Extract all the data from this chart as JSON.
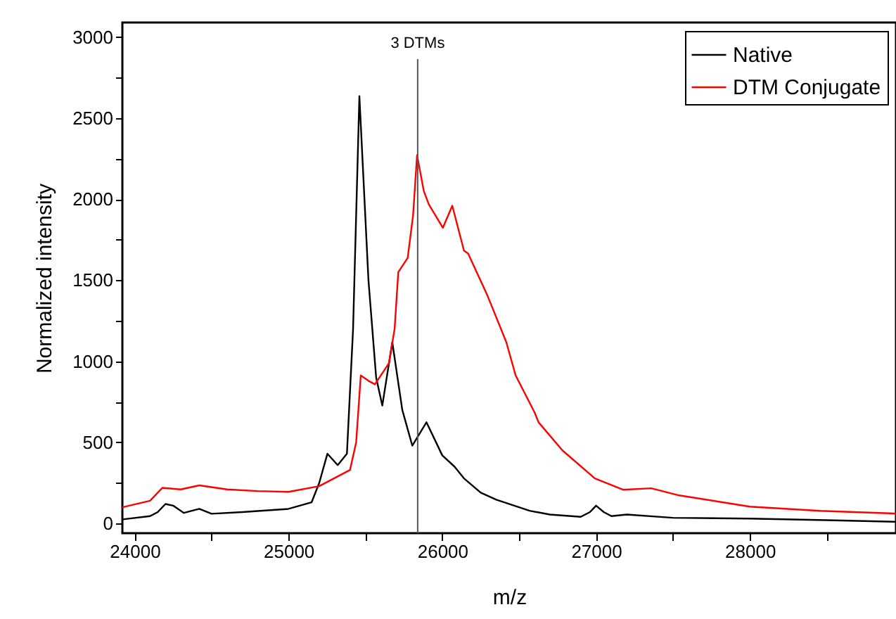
{
  "chart_data": {
    "type": "line",
    "xlabel": "m/z",
    "ylabel": "Normalized intensity",
    "xlim": [
      23920,
      28950
    ],
    "ylim": [
      -60,
      3090
    ],
    "xticks": [
      24000,
      {
        "value": 24500,
        "label": null
      },
      25000,
      {
        "value": 25500,
        "label": null
      },
      26000,
      {
        "value": 26500,
        "label": null
      },
      27000,
      {
        "value": 27500,
        "label": null
      },
      28000,
      {
        "value": 28500,
        "label": null
      }
    ],
    "yticks": [
      0,
      {
        "value": 250,
        "label": null
      },
      500,
      {
        "value": 750,
        "label": null
      },
      1000,
      {
        "value": 1250,
        "label": null
      },
      1500,
      {
        "value": 1750,
        "label": null
      },
      2000,
      {
        "value": 2250,
        "label": null
      },
      2500,
      {
        "value": 2750,
        "label": null
      },
      3000
    ],
    "grid": false,
    "legend": "top right",
    "marker": "none",
    "line_style": "solid",
    "ref_lines": [
      {
        "axis": "x",
        "value": 25840,
        "label": "3 DTMs",
        "color": "#555555"
      }
    ],
    "series": [
      {
        "name": "Native",
        "color": "#000000",
        "x": [
          23920,
          24100,
          24150,
          24200,
          24250,
          24320,
          24420,
          24500,
          24700,
          25000,
          25150,
          25200,
          25253,
          25320,
          25380,
          25420,
          25461,
          25520,
          25570,
          25610,
          25675,
          25740,
          25805,
          25897,
          26000,
          26080,
          26141,
          26250,
          26351,
          26568,
          26700,
          26900,
          26960,
          27000,
          27050,
          27100,
          27200,
          27500,
          28000,
          28500,
          28950
        ],
        "values": [
          25,
          45,
          70,
          120,
          110,
          65,
          90,
          60,
          70,
          90,
          130,
          250,
          430,
          360,
          430,
          1200,
          2636,
          1500,
          900,
          727,
          1118,
          700,
          480,
          624,
          420,
          350,
          278,
          190,
          147,
          78,
          55,
          41,
          70,
          110,
          70,
          45,
          55,
          35,
          30,
          20,
          10
        ]
      },
      {
        "name": "DTM Conjugate",
        "color": "#ff0000",
        "x": [
          23920,
          24100,
          24180,
          24300,
          24420,
          24600,
          24800,
          25000,
          25200,
          25300,
          25400,
          25440,
          25470,
          25520,
          25562,
          25653,
          25690,
          25714,
          25775,
          25810,
          25836,
          25880,
          25912,
          26004,
          26065,
          26141,
          26168,
          26294,
          26416,
          26477,
          26600,
          26626,
          26781,
          26992,
          27175,
          27358,
          27541,
          28000,
          28456,
          28950
        ],
        "values": [
          100,
          140,
          220,
          210,
          235,
          210,
          200,
          195,
          230,
          280,
          330,
          500,
          913,
          880,
          858,
          988,
          1200,
          1550,
          1638,
          1900,
          2272,
          2050,
          1969,
          1824,
          1960,
          1683,
          1665,
          1405,
          1119,
          913,
          685,
          624,
          451,
          278,
          208,
          217,
          173,
          104,
          78,
          61
        ]
      }
    ]
  }
}
